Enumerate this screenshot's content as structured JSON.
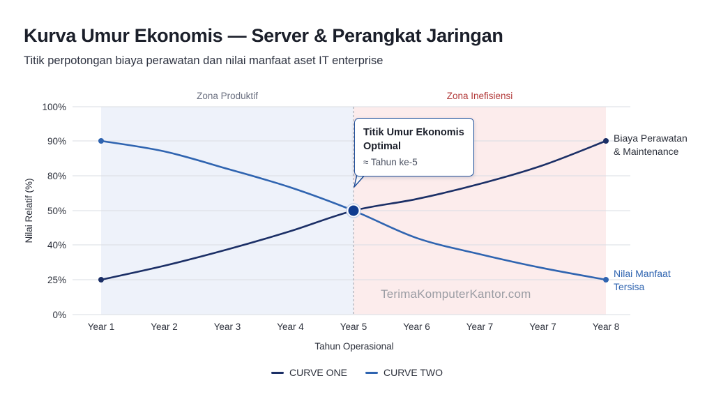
{
  "header": {
    "title": "Kurva Umur Ekonomis — Server & Perangkat Jaringan",
    "subtitle": "Titik perpotongan biaya perawatan dan nilai manfaat aset IT enterprise"
  },
  "chart_data": {
    "type": "line",
    "categories": [
      "Year 1",
      "Year 2",
      "Year 3",
      "Year 4",
      "Year 5",
      "Year 6",
      "Year 7",
      "Year 7",
      "Year 8"
    ],
    "y_ticks": [
      "0%",
      "25%",
      "40%",
      "50%",
      "80%",
      "90%",
      "100%"
    ],
    "xlabel": "Tahun Operasional",
    "ylabel": "Nilai Relatif (%)",
    "grid": true,
    "legend_position": "bottom-center",
    "series": [
      {
        "name": "CURVE ONE",
        "end_label": [
          "Biaya Perawatan",
          "& Maintenance"
        ],
        "color": "#1b2f66",
        "values": [
          25,
          31,
          38,
          44,
          50,
          60,
          73,
          83,
          90
        ]
      },
      {
        "name": "CURVE TWO",
        "end_label": [
          "Nilai Manfaat",
          "Tersisa"
        ],
        "color": "#2f64b0",
        "values": [
          90,
          87,
          82,
          70,
          50,
          42,
          36,
          30,
          25
        ]
      }
    ],
    "zones": [
      {
        "label": "Zona Produktif",
        "from": 0,
        "to": 4,
        "color": "#eef2fa",
        "text_color": "#6b7080"
      },
      {
        "label": "Zona Inefisiensi",
        "from": 4,
        "to": 8,
        "color": "#fcecec",
        "text_color": "#b23a3a"
      }
    ],
    "intersection": {
      "category_index": 4,
      "value": 50
    },
    "annotation": {
      "title": "Titik Umur Ekonomis Optimal",
      "subtitle": "≈ Tahun ke-5"
    }
  },
  "watermark": "TerimaKomputerKantor.com"
}
